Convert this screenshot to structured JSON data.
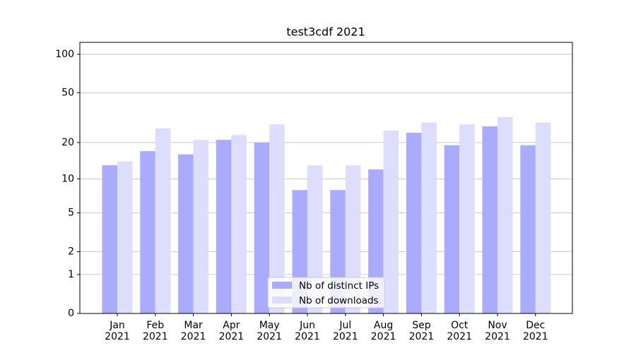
{
  "chart_data": {
    "type": "bar",
    "title": "test3cdf 2021",
    "categories": [
      "Jan\n2021",
      "Feb\n2021",
      "Mar\n2021",
      "Apr\n2021",
      "May\n2021",
      "Jun\n2021",
      "Jul\n2021",
      "Aug\n2021",
      "Sep\n2021",
      "Oct\n2021",
      "Nov\n2021",
      "Dec\n2021"
    ],
    "series": [
      {
        "name": "Nb of distinct IPs",
        "color": "#aaaaff",
        "values": [
          13,
          17,
          16,
          21,
          20,
          8,
          8,
          12,
          24,
          19,
          27,
          19
        ]
      },
      {
        "name": "Nb of downloads",
        "color": "#ddddff",
        "values": [
          14,
          26,
          21,
          23,
          28,
          13,
          13,
          25,
          29,
          28,
          32,
          29
        ]
      }
    ],
    "y_scale": "log1p",
    "ylim": [
      0,
      124
    ],
    "yticks": [
      0,
      1,
      2,
      5,
      10,
      20,
      50,
      100
    ],
    "grid": true,
    "legend_position": "lower center"
  }
}
